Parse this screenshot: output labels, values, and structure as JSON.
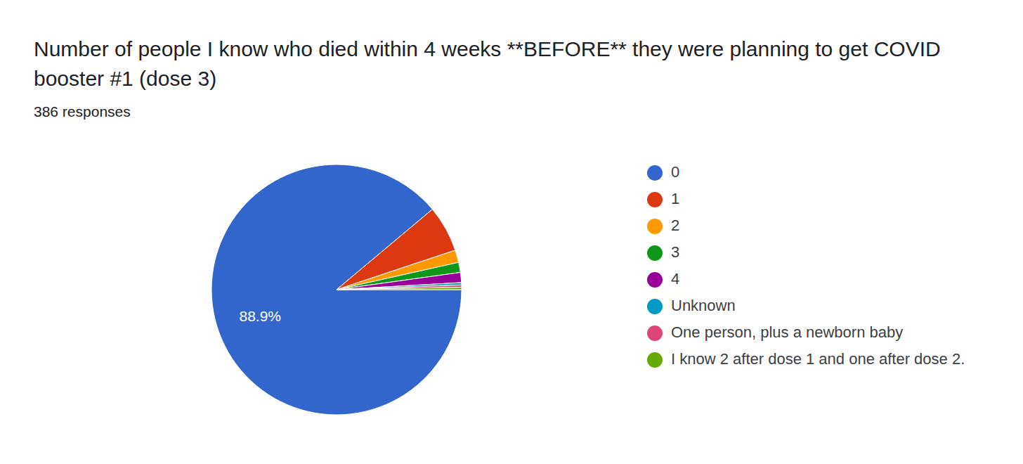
{
  "chart_data": {
    "type": "pie",
    "title": "Number of people I know who died within 4 weeks **BEFORE** they were planning to get COVID booster #1 (dose 3)",
    "subtitle": "386 responses",
    "categories": [
      "0",
      "1",
      "2",
      "3",
      "4",
      "Unknown",
      "One person, plus a newborn baby",
      "I know 2 after dose 1 and one after dose 2."
    ],
    "values": [
      88.9,
      6.0,
      1.6,
      1.3,
      1.3,
      0.3,
      0.3,
      0.3
    ],
    "value_labels": [
      "88.9%",
      null,
      null,
      null,
      null,
      null,
      null,
      null
    ],
    "data_labels": true,
    "colors": [
      "#3366cc",
      "#dc3912",
      "#ff9900",
      "#109618",
      "#990099",
      "#0099c6",
      "#dd4477",
      "#66aa00"
    ],
    "legend": "right"
  }
}
